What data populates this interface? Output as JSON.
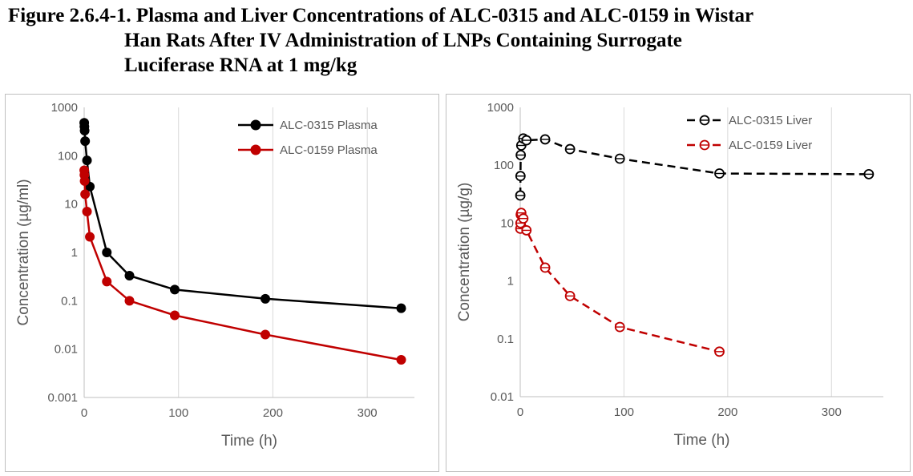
{
  "title": {
    "line1": "Figure 2.6.4-1. Plasma and Liver Concentrations of ALC-0315 and ALC-0159 in Wistar",
    "line2": "Han Rats After IV Administration of LNPs Containing Surrogate",
    "line3": "Luciferase RNA at 1 mg/kg"
  },
  "chart_data": [
    {
      "type": "line",
      "scale_y": "log",
      "xlabel": "Time (h)",
      "ylabel": "Concentration (µg/ml)",
      "xlim": [
        0,
        350
      ],
      "ylim": [
        0.001,
        1000
      ],
      "x_ticks": [
        "0",
        "100",
        "200",
        "300"
      ],
      "y_ticks": [
        "0.001",
        "0.01",
        "0.1",
        "1",
        "10",
        "100",
        "1000"
      ],
      "grid": "vertical",
      "legend_position": "top-right",
      "series": [
        {
          "name": "ALC-0315 Plasma",
          "color": "#000000",
          "line": "solid",
          "marker": "filled-circle",
          "x": [
            0.08,
            0.25,
            0.5,
            1,
            3,
            6,
            24,
            48,
            96,
            192,
            336
          ],
          "y": [
            480,
            400,
            330,
            200,
            80,
            23,
            1.0,
            0.33,
            0.17,
            0.11,
            0.07
          ]
        },
        {
          "name": "ALC-0159 Plasma",
          "color": "#c00000",
          "line": "solid",
          "marker": "filled-circle",
          "x": [
            0.08,
            0.25,
            0.5,
            1,
            3,
            6,
            24,
            48,
            96,
            192,
            336
          ],
          "y": [
            50,
            40,
            30,
            16,
            7,
            2.1,
            0.25,
            0.1,
            0.05,
            0.02,
            0.006
          ]
        }
      ]
    },
    {
      "type": "line",
      "scale_y": "log",
      "xlabel": "Time (h)",
      "ylabel": "Concentration (µg/g)",
      "xlim": [
        0,
        350
      ],
      "ylim": [
        0.01,
        1000
      ],
      "x_ticks": [
        "0",
        "100",
        "200",
        "300"
      ],
      "y_ticks": [
        "0.01",
        "0.1",
        "1",
        "10",
        "100",
        "1000"
      ],
      "grid": "vertical",
      "legend_position": "top-right",
      "series": [
        {
          "name": "ALC-0315 Liver",
          "color": "#000000",
          "line": "dashed",
          "marker": "open-circle",
          "x": [
            0.08,
            0.25,
            0.5,
            1,
            3,
            6,
            24,
            48,
            96,
            192,
            336
          ],
          "y": [
            30,
            65,
            150,
            220,
            290,
            270,
            280,
            190,
            130,
            72,
            70
          ]
        },
        {
          "name": "ALC-0159 Liver",
          "color": "#c00000",
          "line": "dashed",
          "marker": "open-circle",
          "x": [
            0.08,
            0.25,
            0.5,
            1,
            3,
            6,
            24,
            48,
            96,
            192
          ],
          "y": [
            8,
            10,
            14,
            15,
            12,
            7.5,
            1.7,
            0.55,
            0.16,
            0.06
          ]
        }
      ]
    }
  ]
}
